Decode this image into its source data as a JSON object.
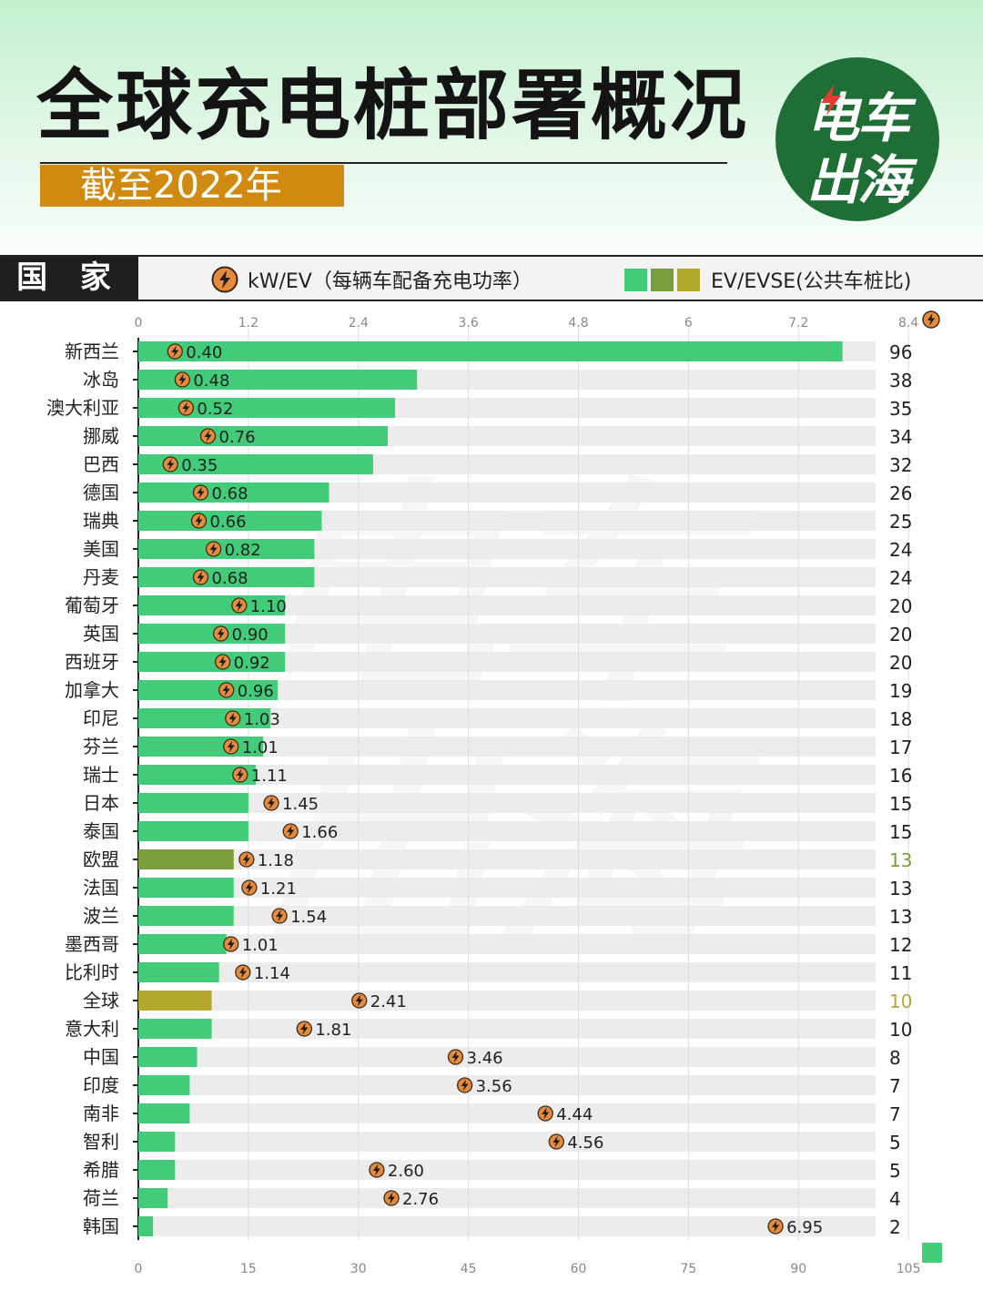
{
  "header": {
    "title": "全球充电桩部署概况",
    "subtitle": "截至2022年",
    "logo_line1": "电车",
    "logo_line2": "出海",
    "watermark_line1": "电车",
    "watermark_line2": "出海"
  },
  "legend": {
    "country_label": "国 家",
    "kw_label": "kW/EV（每辆车配备充电功率）",
    "evse_label": "EV/EVSE(公共车桩比)",
    "swatch_colors": [
      "#42cc79",
      "#7b9d3e",
      "#b3a92e"
    ],
    "bolt_icon": "lightning-bolt-icon"
  },
  "colors": {
    "bar_default": "#42cc79",
    "bar_eu": "#7b9d3e",
    "bar_global": "#b3a92e",
    "track": "#ececec",
    "bolt_circle": "#e68a3c",
    "logo_bg": "#1e6e35",
    "subtitle_bg": "#d08a10"
  },
  "chart_data": {
    "type": "bar",
    "orientation": "horizontal",
    "title": "全球充电桩部署概况",
    "subtitle": "截至2022年",
    "categories": [
      "新西兰",
      "冰岛",
      "澳大利亚",
      "挪威",
      "巴西",
      "德国",
      "瑞典",
      "美国",
      "丹麦",
      "葡萄牙",
      "英国",
      "西班牙",
      "加拿大",
      "印尼",
      "芬兰",
      "瑞士",
      "日本",
      "泰国",
      "欧盟",
      "法国",
      "波兰",
      "墨西哥",
      "比利时",
      "全球",
      "意大利",
      "中国",
      "印度",
      "南非",
      "智利",
      "希腊",
      "荷兰",
      "韩国"
    ],
    "series": [
      {
        "name": "EV/EVSE(公共车桩比)",
        "axis": "bottom",
        "values": [
          96,
          38,
          35,
          34,
          32,
          26,
          25,
          24,
          24,
          20,
          20,
          20,
          19,
          18,
          17,
          16,
          15,
          15,
          13,
          13,
          13,
          12,
          11,
          10,
          10,
          8,
          7,
          7,
          5,
          5,
          4,
          2
        ],
        "labels": [
          "96",
          "38",
          "35",
          "34",
          "32",
          "26",
          "25",
          "24",
          "24",
          "20",
          "20",
          "20",
          "19",
          "18",
          "17",
          "16",
          "15",
          "15",
          "13",
          "13",
          "13",
          "12",
          "11",
          "10",
          "10",
          "8",
          "7",
          "7",
          "5",
          "5",
          "4",
          "2"
        ],
        "bar_values": [
          96,
          38,
          35,
          34,
          32,
          26,
          25,
          24,
          24,
          20,
          20,
          20,
          19,
          18,
          17,
          16,
          15,
          15,
          13,
          13,
          13,
          12,
          11,
          10,
          10,
          8,
          7,
          7,
          5,
          5,
          4,
          2
        ]
      },
      {
        "name": "kW/EV（每辆车配备充电功率）",
        "axis": "top",
        "values": [
          0.4,
          0.48,
          0.52,
          0.76,
          0.35,
          0.68,
          0.66,
          0.82,
          0.68,
          1.1,
          0.9,
          0.92,
          0.96,
          1.03,
          1.01,
          1.11,
          1.45,
          1.66,
          1.18,
          1.21,
          1.54,
          1.01,
          1.14,
          2.41,
          1.81,
          3.46,
          3.56,
          4.44,
          4.56,
          2.6,
          2.76,
          6.95
        ],
        "labels": [
          "0.40",
          "0.48",
          "0.52",
          "0.76",
          "0.35",
          "0.68",
          "0.66",
          "0.82",
          "0.68",
          "1.10",
          "0.90",
          "0.92",
          "0.96",
          "1.03",
          "1.01",
          "1.11",
          "1.45",
          "1.66",
          "1.18",
          "1.21",
          "1.54",
          "1.01",
          "1.14",
          "2.41",
          "1.81",
          "3.46",
          "3.56",
          "4.44",
          "4.56",
          "2.60",
          "2.76",
          "6.95"
        ]
      }
    ],
    "highlight": {
      "欧盟": "eu",
      "全球": "global"
    },
    "top_axis": {
      "range": [
        0,
        9.6
      ],
      "ticks": [
        0,
        1.2,
        2.4,
        3.6,
        4.8,
        6,
        7.2,
        8.4
      ],
      "tick_labels": [
        "0",
        "1.2",
        "2.4",
        "3.6",
        "4.8",
        "6",
        "7.2",
        "8.4"
      ]
    },
    "bottom_axis": {
      "range": [
        0,
        120
      ],
      "ticks": [
        0,
        15,
        30,
        45,
        60,
        75,
        90,
        105
      ],
      "tick_labels": [
        "0",
        "15",
        "30",
        "45",
        "60",
        "75",
        "90",
        "105"
      ]
    },
    "grid": true
  }
}
